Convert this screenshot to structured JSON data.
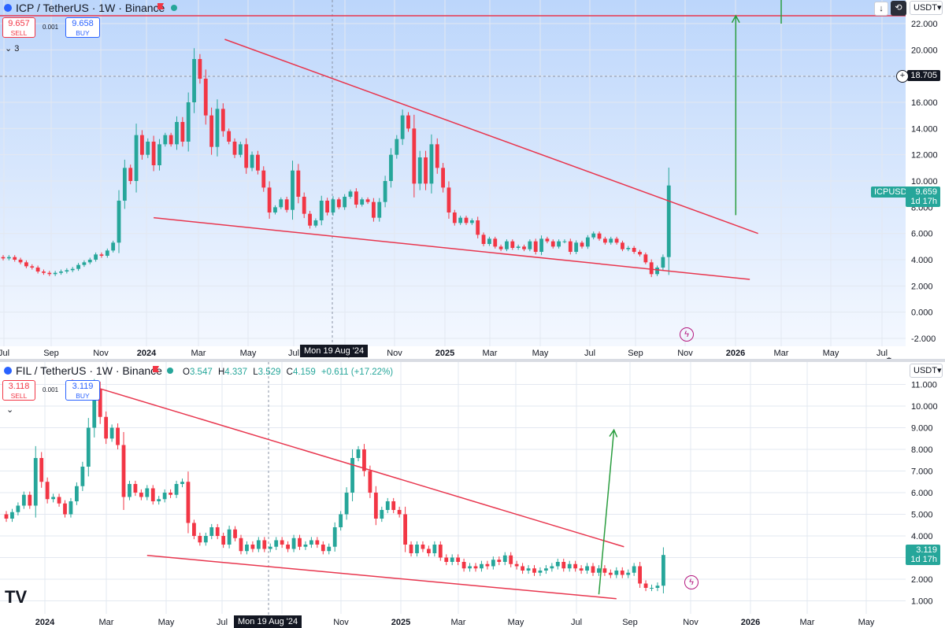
{
  "top": {
    "title": "ICP / TetherUS · 1W · Binance",
    "sell_price": "9.657",
    "sell_label": "SELL",
    "spread": "0.001",
    "buy_price": "9.658",
    "buy_label": "BUY",
    "indicator_count": "3",
    "currency": "USDT",
    "crosshair_date": "Mon 19 Aug '24",
    "crosshair_price": "18.705",
    "last_symbol": "ICPUSDT",
    "last_price": "9.659",
    "last_countdown": "1d 17h"
  },
  "bottom": {
    "title": "FIL / TetherUS · 1W · Binance",
    "ohlc": {
      "o_label": "O",
      "o": "3.547",
      "h_label": "H",
      "h": "4.337",
      "l_label": "L",
      "l": "3.529",
      "c_label": "C",
      "c": "4.159",
      "change": "+0.611 (+17.22%)"
    },
    "sell_price": "3.118",
    "sell_label": "SELL",
    "spread": "0.001",
    "buy_price": "3.119",
    "buy_label": "BUY",
    "currency": "USDT",
    "crosshair_date": "Mon 19 Aug '24",
    "last_price": "3.119",
    "last_countdown": "1d 17h"
  },
  "colors": {
    "up": "#26a69a",
    "down": "#f23645",
    "trend": "#e8364e",
    "arrow": "#2a9d3f"
  },
  "chart_data": [
    {
      "type": "candlestick",
      "title": "ICP / TetherUS · 1W · Binance",
      "x_ticks": [
        "Jul",
        "Sep",
        "Nov",
        "2024",
        "Mar",
        "May",
        "Jul",
        "Sep",
        "Nov",
        "2025",
        "Mar",
        "May",
        "Jul",
        "Sep",
        "Nov",
        "2026",
        "Mar",
        "May",
        "Jul"
      ],
      "y_ticks": [
        -2.0,
        0.0,
        2.0,
        4.0,
        6.0,
        8.0,
        10.0,
        12.0,
        14.0,
        16.0,
        18.0,
        20.0,
        22.0
      ],
      "ylim": [
        -2.6,
        23.2
      ],
      "y_tick_labels": [
        "-2.000",
        "0.000",
        "2.000",
        "4.000",
        "6.000",
        "8.000",
        "10.000",
        "12.000",
        "14.000",
        "16.000",
        "18.000",
        "20.000",
        "22.000"
      ],
      "horizontal_line": 22.6,
      "trendlines": [
        {
          "from": [
            "2024-03-20",
            20.8
          ],
          "to": [
            "2025-12-25",
            6.0
          ]
        },
        {
          "from": [
            "2023-12-25",
            7.2
          ],
          "to": [
            "2025-12-15",
            2.5
          ]
        }
      ],
      "target_arrow": {
        "from": [
          "2025-11-28",
          7.4
        ],
        "to": [
          "2025-11-28",
          22.6
        ]
      },
      "series": [
        {
          "values": [
            [
              4.2,
              4.1
            ],
            [
              4.1,
              4.2
            ],
            [
              4.2,
              4.0
            ],
            [
              4.0,
              3.8
            ],
            [
              3.8,
              3.5
            ],
            [
              3.5,
              3.4
            ],
            [
              3.4,
              3.1
            ],
            [
              3.1,
              3.0
            ],
            [
              3.0,
              2.9
            ],
            [
              2.9,
              3.0
            ],
            [
              3.0,
              3.1
            ],
            [
              3.1,
              3.2
            ],
            [
              3.2,
              3.3
            ],
            [
              3.3,
              3.6
            ],
            [
              3.6,
              3.8
            ],
            [
              3.8,
              4.0
            ],
            [
              4.0,
              4.4
            ],
            [
              4.4,
              4.3
            ],
            [
              4.3,
              4.7
            ],
            [
              4.7,
              5.3
            ],
            [
              5.3,
              8.5
            ],
            [
              8.5,
              11.0
            ],
            [
              11.0,
              10.0
            ],
            [
              10.0,
              13.5
            ],
            [
              13.5,
              12.0
            ],
            [
              12.0,
              13.0
            ],
            [
              13.0,
              11.2
            ],
            [
              11.2,
              12.8
            ],
            [
              12.8,
              13.5
            ],
            [
              13.5,
              12.8
            ],
            [
              12.8,
              14.5
            ],
            [
              14.5,
              13.0
            ],
            [
              13.0,
              16.0
            ],
            [
              16.0,
              19.3
            ],
            [
              19.3,
              17.8
            ],
            [
              17.8,
              15.0
            ],
            [
              15.0,
              12.6
            ],
            [
              12.6,
              15.5
            ],
            [
              15.5,
              13.8
            ],
            [
              13.8,
              13.0
            ],
            [
              13.0,
              12.0
            ],
            [
              12.0,
              12.8
            ],
            [
              12.8,
              11.0
            ],
            [
              11.0,
              12.0
            ],
            [
              12.0,
              10.8
            ],
            [
              10.8,
              9.5
            ],
            [
              9.5,
              7.6
            ],
            [
              7.6,
              8.0
            ],
            [
              8.0,
              8.6
            ],
            [
              8.6,
              7.8
            ],
            [
              7.8,
              10.8
            ],
            [
              10.8,
              8.8
            ],
            [
              8.8,
              7.5
            ],
            [
              7.5,
              6.6
            ],
            [
              6.6,
              7.0
            ],
            [
              7.0,
              8.5
            ],
            [
              8.5,
              7.6
            ],
            [
              7.6,
              8.6
            ],
            [
              8.6,
              8.0
            ],
            [
              8.0,
              8.8
            ],
            [
              8.8,
              9.2
            ],
            [
              9.2,
              8.2
            ],
            [
              8.2,
              8.6
            ],
            [
              8.6,
              8.4
            ],
            [
              8.4,
              7.2
            ],
            [
              7.2,
              8.4
            ],
            [
              8.4,
              10.0
            ],
            [
              10.0,
              12.0
            ],
            [
              12.0,
              13.2
            ],
            [
              13.2,
              15.0
            ],
            [
              15.0,
              14.0
            ],
            [
              14.0,
              9.8
            ],
            [
              9.8,
              11.8
            ],
            [
              11.8,
              9.8
            ],
            [
              9.8,
              12.8
            ],
            [
              12.8,
              11.0
            ],
            [
              11.0,
              9.5
            ],
            [
              9.5,
              7.6
            ],
            [
              7.6,
              6.8
            ],
            [
              6.8,
              7.2
            ],
            [
              7.2,
              6.8
            ],
            [
              6.8,
              7.0
            ],
            [
              7.0,
              5.9
            ],
            [
              5.9,
              5.2
            ],
            [
              5.2,
              5.6
            ],
            [
              5.6,
              5.0
            ],
            [
              5.0,
              4.8
            ],
            [
              4.8,
              5.4
            ],
            [
              5.4,
              4.9
            ],
            [
              4.9,
              5.0
            ],
            [
              5.0,
              4.8
            ],
            [
              4.8,
              5.4
            ],
            [
              5.4,
              4.6
            ],
            [
              4.6,
              5.6
            ],
            [
              5.6,
              5.4
            ],
            [
              5.4,
              5.0
            ],
            [
              5.0,
              5.4
            ],
            [
              5.4,
              5.4
            ],
            [
              5.4,
              4.6
            ],
            [
              4.6,
              5.3
            ],
            [
              5.3,
              5.0
            ],
            [
              5.0,
              5.7
            ],
            [
              5.7,
              6.0
            ],
            [
              6.0,
              5.6
            ],
            [
              5.6,
              5.3
            ],
            [
              5.3,
              5.6
            ],
            [
              5.6,
              5.3
            ],
            [
              5.3,
              4.8
            ],
            [
              4.8,
              4.9
            ],
            [
              4.9,
              4.6
            ],
            [
              4.6,
              4.4
            ],
            [
              4.4,
              3.8
            ],
            [
              3.8,
              2.9
            ],
            [
              2.9,
              3.4
            ],
            [
              3.4,
              4.2
            ],
            [
              4.2,
              9.659
            ]
          ]
        }
      ]
    },
    {
      "type": "candlestick",
      "title": "FIL / TetherUS · 1W · Binance",
      "x_ticks": [
        "2024",
        "Mar",
        "May",
        "Jul",
        "Sep",
        "Nov",
        "2025",
        "Mar",
        "May",
        "Jul",
        "Sep",
        "Nov",
        "2026",
        "Mar",
        "May"
      ],
      "y_ticks": [
        1.0,
        2.0,
        3.0,
        4.0,
        5.0,
        6.0,
        7.0,
        8.0,
        9.0,
        10.0,
        11.0
      ],
      "ylim": [
        0.4,
        11.6
      ],
      "y_tick_labels": [
        "1.000",
        "2.000",
        "3.000",
        "4.000",
        "5.000",
        "6.000",
        "7.000",
        "8.000",
        "9.000",
        "10.000",
        "11.000"
      ],
      "trendlines": [
        {
          "from": [
            "2024-02-20",
            11.2
          ],
          "to": [
            "2025-12-10",
            3.5
          ]
        },
        {
          "from": [
            "2024-05-20",
            3.1
          ],
          "to": [
            "2025-12-01",
            1.1
          ]
        }
      ],
      "target_arrow": {
        "from": [
          "2025-11-10",
          1.3
        ],
        "to": [
          "2025-11-28",
          8.9
        ]
      },
      "series": [
        {
          "values": [
            [
              5.0,
              4.8
            ],
            [
              4.8,
              5.1
            ],
            [
              5.1,
              5.4
            ],
            [
              5.4,
              5.9
            ],
            [
              5.9,
              5.4
            ],
            [
              5.4,
              7.6
            ],
            [
              7.6,
              6.5
            ],
            [
              6.5,
              5.7
            ],
            [
              5.7,
              5.8
            ],
            [
              5.8,
              5.5
            ],
            [
              5.5,
              5.0
            ],
            [
              5.0,
              5.6
            ],
            [
              5.6,
              6.3
            ],
            [
              6.3,
              7.2
            ],
            [
              7.2,
              9.0
            ],
            [
              9.0,
              10.8
            ],
            [
              10.8,
              9.5
            ],
            [
              9.5,
              8.5
            ],
            [
              8.5,
              9.0
            ],
            [
              9.0,
              8.2
            ],
            [
              8.2,
              5.8
            ],
            [
              5.8,
              6.4
            ],
            [
              6.4,
              6.0
            ],
            [
              6.0,
              5.8
            ],
            [
              5.8,
              6.2
            ],
            [
              6.2,
              5.6
            ],
            [
              5.6,
              5.7
            ],
            [
              5.7,
              6.0
            ],
            [
              6.0,
              5.9
            ],
            [
              5.9,
              6.4
            ],
            [
              6.4,
              6.5
            ],
            [
              6.5,
              4.6
            ],
            [
              4.6,
              4.0
            ],
            [
              4.0,
              3.7
            ],
            [
              3.7,
              4.0
            ],
            [
              4.0,
              4.4
            ],
            [
              4.4,
              4.0
            ],
            [
              4.0,
              3.6
            ],
            [
              3.6,
              4.3
            ],
            [
              4.3,
              3.9
            ],
            [
              3.9,
              3.3
            ],
            [
              3.3,
              3.6
            ],
            [
              3.6,
              3.4
            ],
            [
              3.4,
              3.8
            ],
            [
              3.8,
              3.4
            ],
            [
              3.4,
              3.5
            ],
            [
              3.5,
              3.8
            ],
            [
              3.8,
              3.6
            ],
            [
              3.6,
              3.4
            ],
            [
              3.4,
              3.9
            ],
            [
              3.9,
              3.5
            ],
            [
              3.5,
              3.6
            ],
            [
              3.6,
              3.8
            ],
            [
              3.8,
              3.6
            ],
            [
              3.6,
              3.3
            ],
            [
              3.3,
              3.5
            ],
            [
              3.5,
              4.4
            ],
            [
              4.4,
              5.0
            ],
            [
              5.0,
              6.0
            ],
            [
              6.0,
              7.6
            ],
            [
              7.6,
              8.0
            ],
            [
              8.0,
              7.0
            ],
            [
              7.0,
              6.0
            ],
            [
              6.0,
              4.8
            ],
            [
              4.8,
              5.2
            ],
            [
              5.2,
              5.6
            ],
            [
              5.6,
              5.2
            ],
            [
              5.2,
              5.0
            ],
            [
              5.0,
              3.6
            ],
            [
              3.6,
              3.2
            ],
            [
              3.2,
              3.6
            ],
            [
              3.6,
              3.4
            ],
            [
              3.4,
              3.2
            ],
            [
              3.2,
              3.6
            ],
            [
              3.6,
              3.0
            ],
            [
              3.0,
              2.8
            ],
            [
              2.8,
              3.0
            ],
            [
              3.0,
              2.8
            ],
            [
              2.8,
              2.5
            ],
            [
              2.5,
              2.6
            ],
            [
              2.6,
              2.5
            ],
            [
              2.5,
              2.7
            ],
            [
              2.7,
              2.6
            ],
            [
              2.6,
              2.9
            ],
            [
              2.9,
              2.8
            ],
            [
              2.8,
              3.1
            ],
            [
              3.1,
              2.7
            ],
            [
              2.7,
              2.6
            ],
            [
              2.6,
              2.4
            ],
            [
              2.4,
              2.5
            ],
            [
              2.5,
              2.3
            ],
            [
              2.3,
              2.4
            ],
            [
              2.4,
              2.5
            ],
            [
              2.5,
              2.6
            ],
            [
              2.6,
              2.8
            ],
            [
              2.8,
              2.5
            ],
            [
              2.5,
              2.7
            ],
            [
              2.7,
              2.5
            ],
            [
              2.5,
              2.4
            ],
            [
              2.4,
              2.6
            ],
            [
              2.6,
              2.3
            ],
            [
              2.3,
              2.5
            ],
            [
              2.5,
              2.3
            ],
            [
              2.3,
              2.2
            ],
            [
              2.2,
              2.4
            ],
            [
              2.4,
              2.2
            ],
            [
              2.2,
              2.3
            ],
            [
              2.3,
              2.6
            ],
            [
              2.6,
              1.8
            ],
            [
              1.8,
              1.6
            ],
            [
              1.6,
              1.6
            ],
            [
              1.6,
              1.7
            ],
            [
              1.7,
              3.119
            ]
          ]
        }
      ]
    }
  ]
}
